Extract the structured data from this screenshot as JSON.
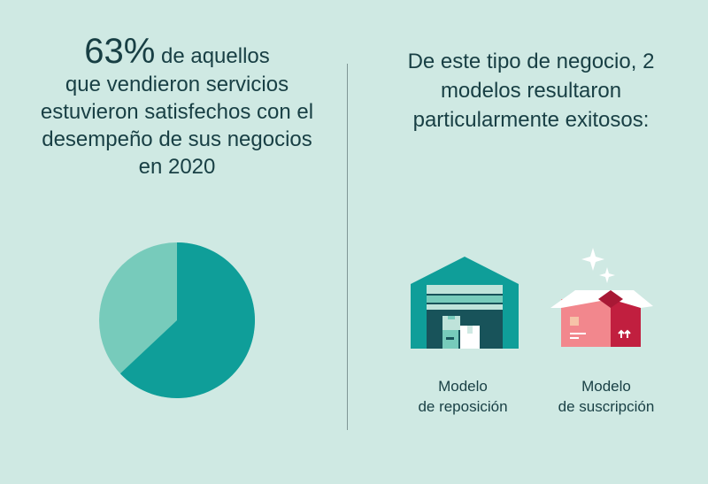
{
  "left": {
    "percent": "63%",
    "text_line1": " de aquellos",
    "text_rest": "que vendieron servicios estuvieron satisfechos con el desempeño de sus negocios en 2020",
    "pie": {
      "share": 0.63,
      "color_main": "#0f9e99",
      "color_rest": "#77cbbb"
    }
  },
  "right": {
    "heading": "De este tipo de negocio, 2 modelos resultaron particularmente exitosos:",
    "models": [
      {
        "icon": "warehouse-icon",
        "label_line1": "Modelo",
        "label_line2": "de reposición"
      },
      {
        "icon": "subscription-box-icon",
        "label_line1": "Modelo",
        "label_line2": "de suscripción"
      }
    ]
  }
}
